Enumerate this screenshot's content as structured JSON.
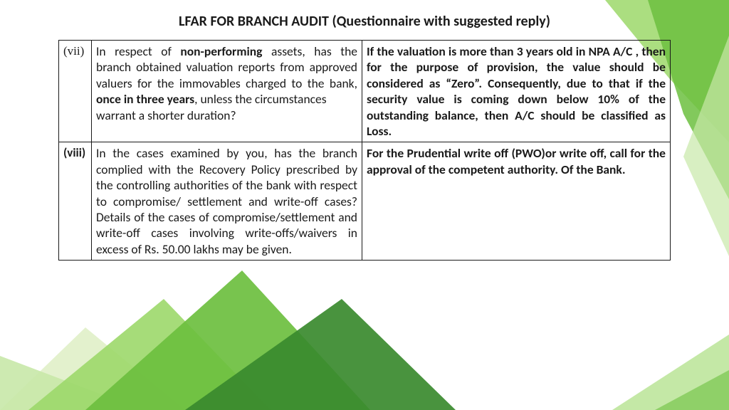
{
  "title": "LFAR  FOR BRANCH AUDIT (Questionnaire with suggested reply)",
  "rows": [
    {
      "num": "(vii)",
      "num_bold": false,
      "q_parts": [
        {
          "t": "In respect of ",
          "b": false
        },
        {
          "t": "non-performing",
          "b": true
        },
        {
          "t": " assets, has the branch obtained valuation reports from approved valuers  for the immovables  charged to the bank, ",
          "b": false
        },
        {
          "t": "once in three years",
          "b": true
        },
        {
          "t": ", unless the circumstances",
          "b": false
        }
      ],
      "q_tail": "warrant a shorter duration?",
      "a": "If the valuation is more than 3 years old in NPA A/C , then for the purpose of provision, the value should be considered as “Zero”. Consequently, due to that if the security value is coming down below 10% of the outstanding balance, then A/C should be classified as Loss."
    },
    {
      "num": "(viii)",
      "num_bold": true,
      "q_parts": [
        {
          "t": "In the cases examined by you, has the branch complied with the Recovery Policy prescribed by the controlling authorities of the bank with respect to compromise/ settlement and write-off cases? Details of the cases of compromise/settlement and write-off cases involving write-offs/waivers in excess of Rs. 50.00 lakhs may be given.",
          "b": false
        }
      ],
      "q_tail": "",
      "a": "For the Prudential write off (PWO)or write off, call for the approval of the competent authority. Of the Bank."
    }
  ],
  "bg": {
    "leaf_dark": "#3a8a2e",
    "leaf_mid": "#6cbf3f",
    "leaf_light1": "#9cd86a",
    "leaf_light2": "#c8e8a8",
    "leaf_pale": "#e0f0c8"
  }
}
